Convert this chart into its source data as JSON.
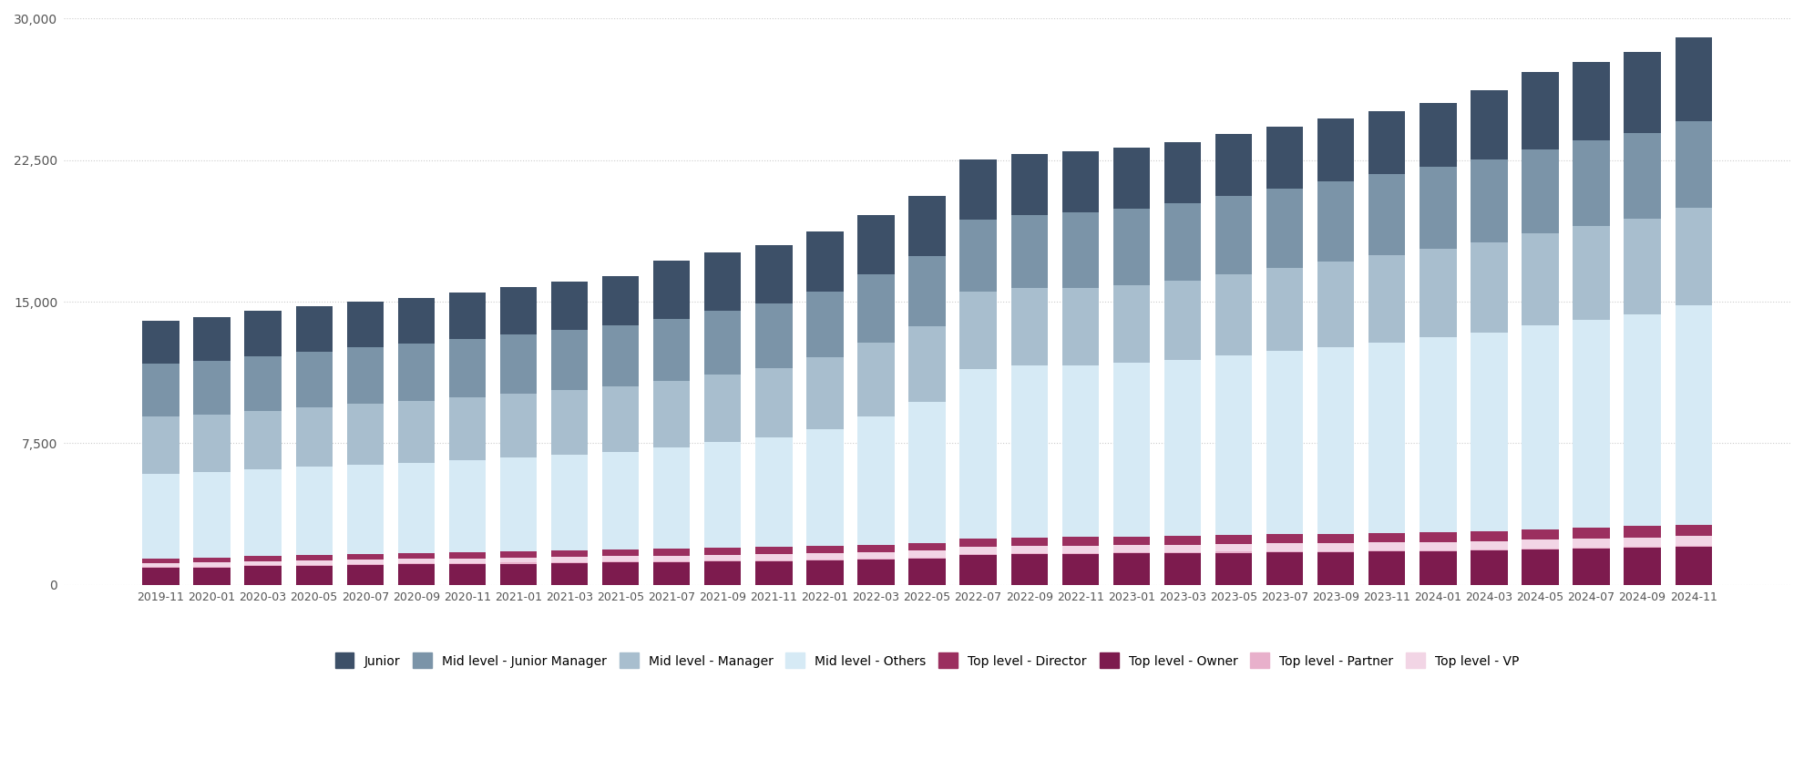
{
  "categories": [
    "2019-11",
    "2020-01",
    "2020-03",
    "2020-05",
    "2020-07",
    "2020-09",
    "2020-11",
    "2021-01",
    "2021-03",
    "2021-05",
    "2021-07",
    "2021-09",
    "2021-11",
    "2022-01",
    "2022-03",
    "2022-05",
    "2022-07",
    "2022-09",
    "2022-11",
    "2023-01",
    "2023-03",
    "2023-05",
    "2023-07",
    "2023-09",
    "2023-11",
    "2024-01",
    "2024-03",
    "2024-05",
    "2024-07",
    "2024-09",
    "2024-11"
  ],
  "series": {
    "Top level - Owner": [
      900,
      920,
      980,
      1000,
      1050,
      1080,
      1100,
      1120,
      1150,
      1170,
      1200,
      1230,
      1260,
      1300,
      1350,
      1400,
      1600,
      1650,
      1650,
      1660,
      1680,
      1700,
      1720,
      1730,
      1750,
      1780,
      1800,
      1850,
      1900,
      1950,
      2000
    ],
    "Top level - Partner": [
      50,
      50,
      50,
      50,
      50,
      50,
      50,
      50,
      50,
      50,
      50,
      50,
      50,
      50,
      50,
      50,
      50,
      50,
      50,
      50,
      50,
      50,
      50,
      50,
      50,
      50,
      50,
      50,
      50,
      50,
      50
    ],
    "Top level - VP": [
      200,
      210,
      220,
      230,
      240,
      250,
      260,
      270,
      280,
      290,
      300,
      310,
      320,
      330,
      340,
      350,
      360,
      370,
      380,
      390,
      400,
      410,
      420,
      430,
      440,
      450,
      460,
      480,
      500,
      520,
      540
    ],
    "Top level - Director": [
      250,
      260,
      270,
      280,
      290,
      300,
      310,
      320,
      330,
      340,
      350,
      360,
      370,
      380,
      390,
      400,
      420,
      440,
      450,
      460,
      470,
      480,
      490,
      500,
      510,
      520,
      540,
      560,
      580,
      590,
      600
    ],
    "Mid level - Others": [
      4500,
      4550,
      4600,
      4700,
      4750,
      4800,
      4900,
      5000,
      5100,
      5200,
      5400,
      5600,
      5800,
      6200,
      6800,
      7500,
      9000,
      9100,
      9100,
      9200,
      9300,
      9500,
      9700,
      9900,
      10100,
      10300,
      10500,
      10800,
      11000,
      11200,
      11600
    ],
    "Mid level - Manager": [
      3000,
      3050,
      3100,
      3150,
      3200,
      3250,
      3300,
      3350,
      3400,
      3450,
      3500,
      3600,
      3700,
      3800,
      3900,
      4000,
      4100,
      4100,
      4100,
      4100,
      4200,
      4300,
      4400,
      4500,
      4600,
      4700,
      4800,
      4900,
      5000,
      5100,
      5200
    ],
    "Mid level - Junior Manager": [
      2800,
      2850,
      2900,
      2950,
      3000,
      3050,
      3100,
      3150,
      3200,
      3250,
      3300,
      3350,
      3400,
      3500,
      3600,
      3700,
      3800,
      3900,
      4000,
      4050,
      4100,
      4150,
      4200,
      4250,
      4300,
      4350,
      4400,
      4450,
      4500,
      4550,
      4600
    ],
    "Junior": [
      2300,
      2310,
      2380,
      2390,
      2410,
      2420,
      2480,
      2530,
      2570,
      2590,
      3100,
      3100,
      3120,
      3140,
      3160,
      3200,
      3220,
      3230,
      3250,
      3260,
      3280,
      3300,
      3320,
      3340,
      3360,
      3400,
      3650,
      4100,
      4200,
      4300,
      4400
    ]
  },
  "colors": {
    "Top level - Owner": "#7d1b4e",
    "Top level - Partner": "#e8b0cb",
    "Top level - VP": "#f2d5e5",
    "Top level - Director": "#9b2f5f",
    "Mid level - Others": "#d6eaf5",
    "Mid level - Manager": "#a8bece",
    "Mid level - Junior Manager": "#7b94a8",
    "Junior": "#3d5068"
  },
  "ylim": [
    0,
    30000
  ],
  "yticks": [
    0,
    7500,
    15000,
    22500,
    30000
  ],
  "background_color": "#ffffff",
  "grid_color": "#cccccc"
}
